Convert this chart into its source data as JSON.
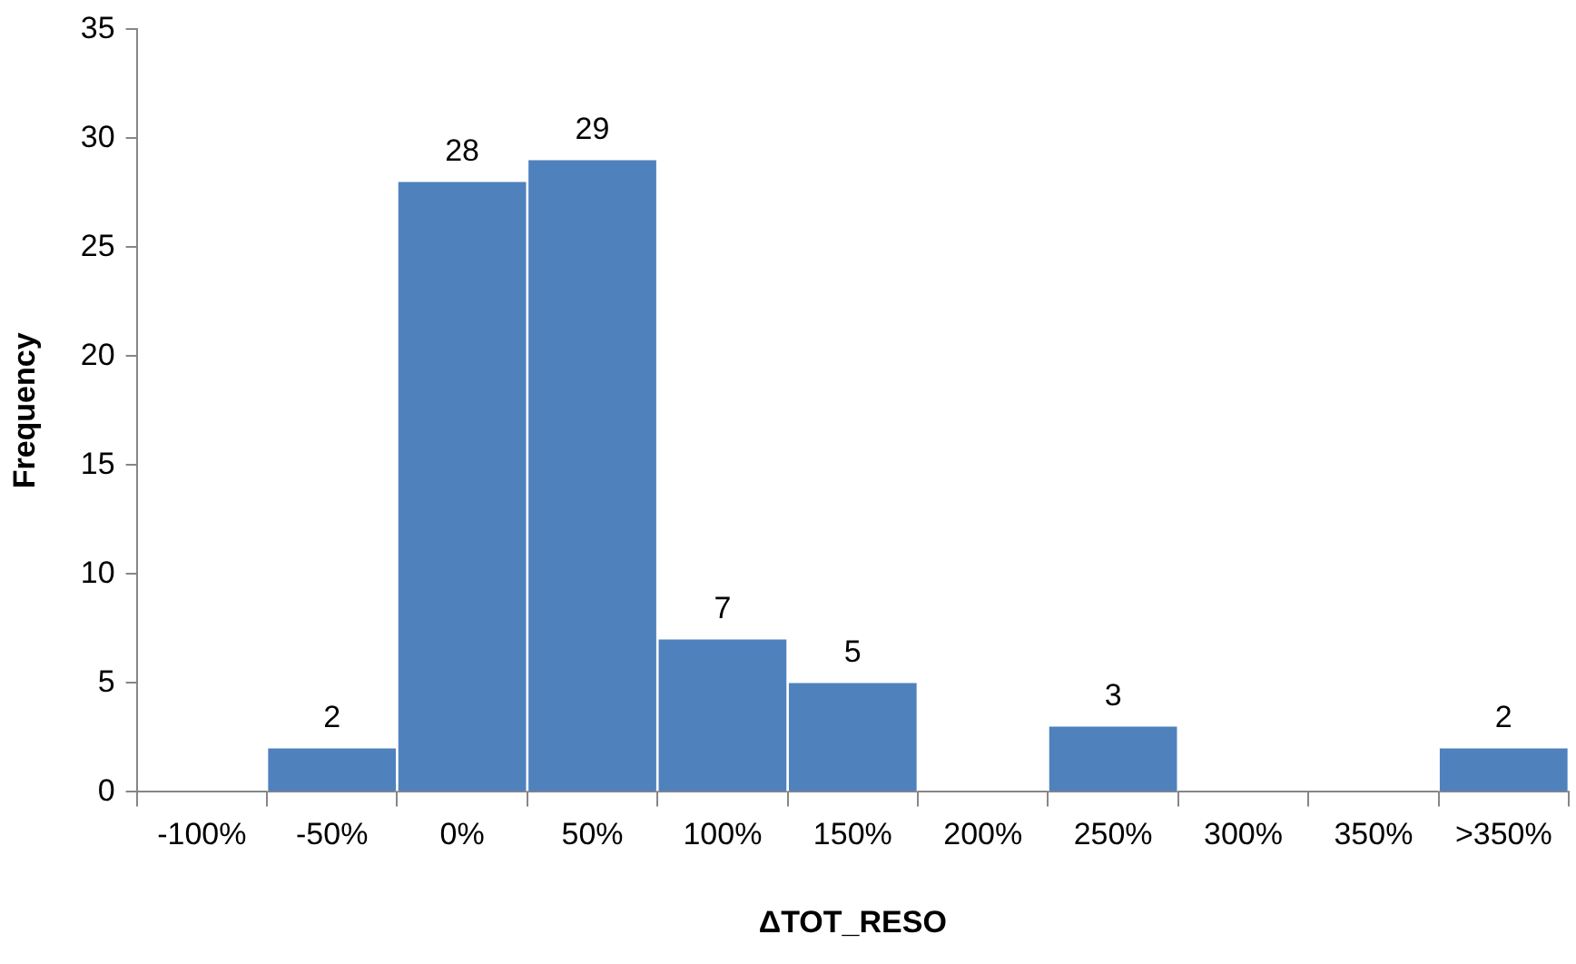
{
  "chart_data": {
    "type": "bar",
    "xlabel": "ΔTOT_RESO",
    "ylabel": "Frequency",
    "categories": [
      "-100%",
      "-50%",
      "0%",
      "50%",
      "100%",
      "150%",
      "200%",
      "250%",
      "300%",
      "350%",
      ">350%"
    ],
    "values": [
      0,
      2,
      28,
      29,
      7,
      5,
      0,
      3,
      0,
      0,
      2
    ],
    "value_labels": [
      null,
      "2",
      "28",
      "29",
      "7",
      "5",
      null,
      "3",
      null,
      null,
      "2"
    ],
    "color": "#4f81bd",
    "ylim": [
      0,
      35
    ],
    "yticks": [
      0,
      5,
      10,
      15,
      20,
      25,
      30,
      35
    ],
    "grid": false,
    "legend": false
  }
}
